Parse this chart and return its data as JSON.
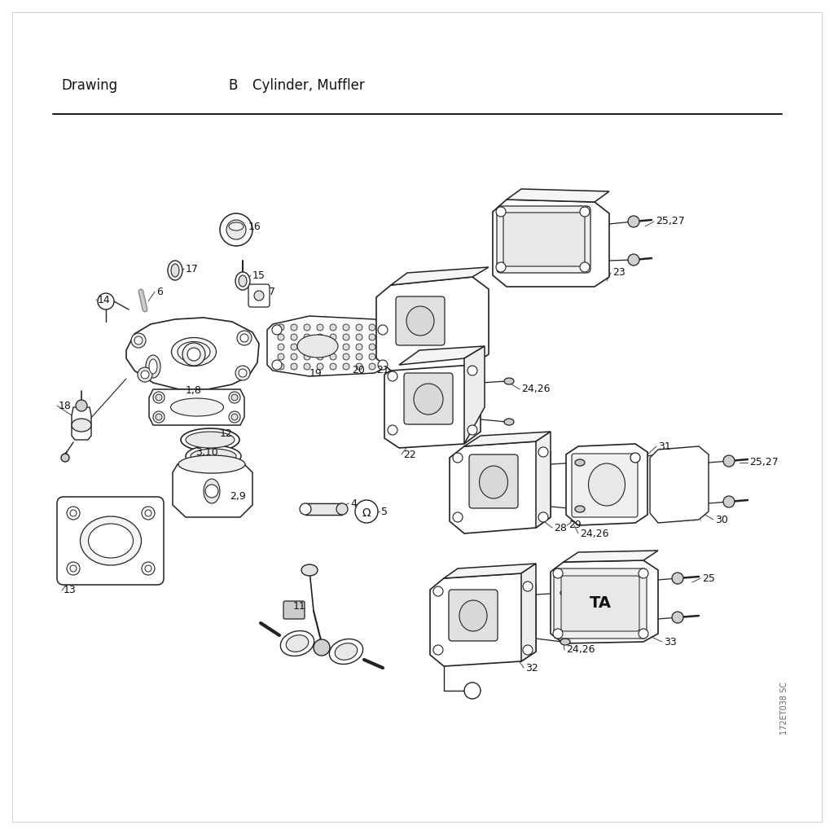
{
  "title_left": "Drawing",
  "title_mid": "B",
  "title_right": "Cylinder, Muffler",
  "bg_color": "#ffffff",
  "line_color": "#222222",
  "label_color": "#111111",
  "header_fontsize": 12,
  "watermark": "172ET038 SC",
  "page_border_color": "#cccccc"
}
